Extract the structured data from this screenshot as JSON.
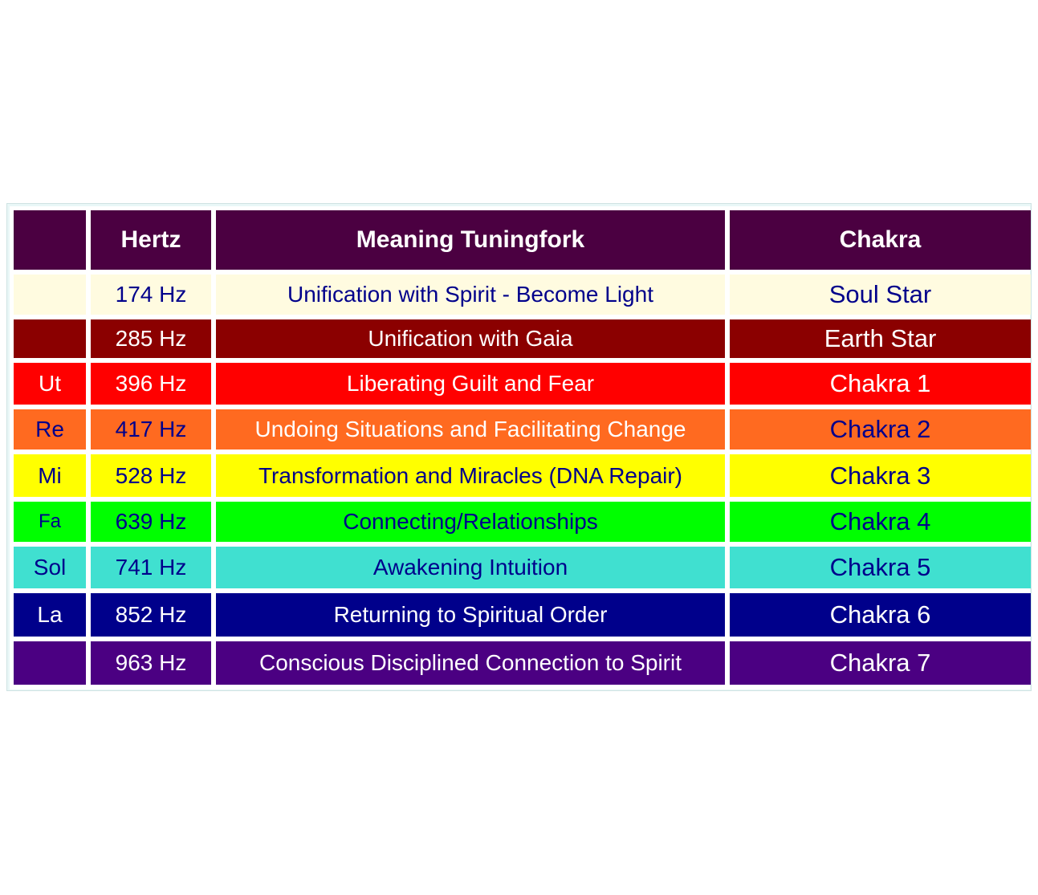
{
  "headers": {
    "note": "",
    "hertz": "Hertz",
    "meaning": "Meaning Tuningfork",
    "chakra": "Chakra"
  },
  "rows": [
    {
      "note": "",
      "hertz": "174 Hz",
      "meaning": "Unification with Spirit - Become Light",
      "chakra": "Soul Star",
      "bg": "#fffbe0",
      "fg": "#00008b",
      "height": 50
    },
    {
      "note": "",
      "hertz": "285 Hz",
      "meaning": "Unification with Gaia",
      "chakra": "Earth Star",
      "bg": "#8b0000",
      "fg": "#ffffff",
      "height": 48
    },
    {
      "note": "Ut",
      "hertz": "396 Hz",
      "meaning": "Liberating Guilt and Fear",
      "chakra": "Chakra 1",
      "bg": "#ff0000",
      "fg": "#ffffff",
      "height": 52
    },
    {
      "note": "Re",
      "hertz": "417 Hz",
      "meaning": "Undoing Situations and Facilitating Change",
      "chakra": "Chakra 2",
      "bg": "#ff6a20",
      "fg": "#00008b",
      "meaning_fg": "#ffffff",
      "height": 50
    },
    {
      "note": "Mi",
      "hertz": "528 Hz",
      "meaning": "Transformation and Miracles (DNA Repair)",
      "chakra": "Chakra 3",
      "bg": "#ffff00",
      "fg": "#00008b",
      "height": 53
    },
    {
      "note": "Fa",
      "hertz": "639 Hz",
      "meaning": "Connecting/Relationships",
      "chakra": "Chakra 4",
      "bg": "#00ff00",
      "fg": "#00008b",
      "height": 50
    },
    {
      "note": "Sol",
      "hertz": "741 Hz",
      "meaning": "Awakening Intuition",
      "chakra": "Chakra 5",
      "bg": "#40e0d0",
      "fg": "#00008b",
      "height": 52
    },
    {
      "note": "La",
      "hertz": "852 Hz",
      "meaning": "Returning to Spiritual Order",
      "chakra": "Chakra 6",
      "bg": "#00008b",
      "fg": "#ffffff",
      "height": 54
    },
    {
      "note": "",
      "hertz": "963 Hz",
      "meaning": "Conscious Disciplined Connection to Spirit",
      "chakra": "Chakra 7",
      "bg": "#4b0082",
      "fg": "#ffffff",
      "height": 54
    }
  ]
}
